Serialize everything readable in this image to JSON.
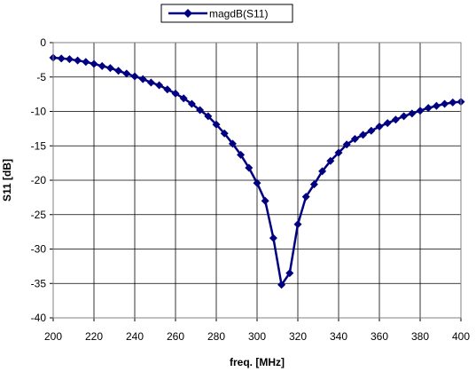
{
  "chart_data": {
    "type": "line",
    "xlabel": "freq. [MHz]",
    "ylabel": "S11 [dB]",
    "xlim": [
      200,
      400
    ],
    "ylim": [
      -40,
      0
    ],
    "x_ticks": [
      200,
      220,
      240,
      260,
      280,
      300,
      320,
      340,
      360,
      380,
      400
    ],
    "y_ticks": [
      0,
      -5,
      -10,
      -15,
      -20,
      -25,
      -30,
      -35,
      -40
    ],
    "grid": true,
    "legend_position": "top-center",
    "marker": "diamond",
    "color": "#000080",
    "series": [
      {
        "name": "magdB(S11)",
        "x": [
          200,
          204,
          208,
          212,
          216,
          220,
          224,
          228,
          232,
          236,
          240,
          244,
          248,
          252,
          256,
          260,
          264,
          268,
          272,
          276,
          280,
          284,
          288,
          292,
          296,
          300,
          304,
          308,
          312,
          316,
          320,
          324,
          328,
          332,
          336,
          340,
          344,
          348,
          352,
          356,
          360,
          364,
          368,
          372,
          376,
          380,
          384,
          388,
          392,
          396,
          400
        ],
        "y": [
          -2.2,
          -2.3,
          -2.4,
          -2.6,
          -2.8,
          -3.1,
          -3.4,
          -3.7,
          -4.1,
          -4.5,
          -4.9,
          -5.3,
          -5.8,
          -6.2,
          -6.8,
          -7.4,
          -8.1,
          -8.9,
          -9.8,
          -10.7,
          -11.9,
          -13.2,
          -14.7,
          -16.3,
          -18.2,
          -20.4,
          -23.0,
          -28.4,
          -35.2,
          -33.5,
          -26.4,
          -22.4,
          -20.6,
          -18.7,
          -17.2,
          -16.0,
          -14.8,
          -14.0,
          -13.4,
          -12.8,
          -12.2,
          -11.7,
          -11.2,
          -10.7,
          -10.3,
          -9.9,
          -9.5,
          -9.2,
          -8.9,
          -8.7,
          -8.6
        ]
      }
    ]
  }
}
